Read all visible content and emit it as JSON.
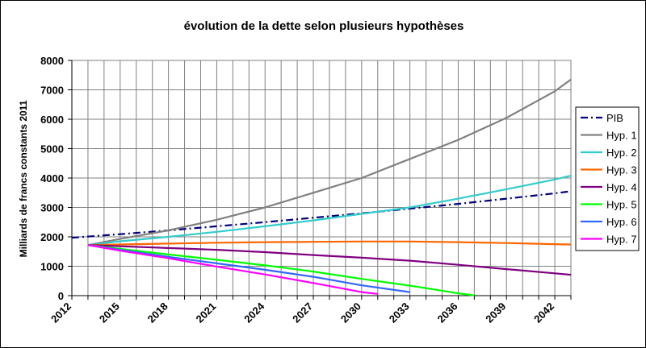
{
  "chart_data": {
    "type": "line",
    "title": "évolution de la dette selon plusieurs hypothèses",
    "ylabel": "Milliards de francs constants 2011",
    "xlabel": "",
    "xlim": [
      2012,
      2043
    ],
    "ylim": [
      0,
      8000
    ],
    "x_ticks": [
      2012,
      2015,
      2018,
      2021,
      2024,
      2027,
      2030,
      2033,
      2036,
      2039,
      2042
    ],
    "y_ticks": [
      0,
      1000,
      2000,
      3000,
      4000,
      5000,
      6000,
      7000,
      8000
    ],
    "grid": true,
    "legend_position": "right",
    "series": [
      {
        "name": "PIB",
        "color": "#000080",
        "dash": "dash-dot",
        "x": [
          2012,
          2015,
          2018,
          2021,
          2024,
          2027,
          2030,
          2033,
          2036,
          2039,
          2042,
          2043
        ],
        "y": [
          1970,
          2090,
          2220,
          2360,
          2500,
          2650,
          2800,
          2960,
          3120,
          3300,
          3480,
          3550
        ]
      },
      {
        "name": "Hyp. 1",
        "color": "#808080",
        "x": [
          2013,
          2015,
          2018,
          2021,
          2024,
          2027,
          2030,
          2033,
          2036,
          2039,
          2042,
          2043
        ],
        "y": [
          1720,
          1930,
          2220,
          2580,
          3000,
          3500,
          4000,
          4650,
          5300,
          6050,
          6950,
          7350
        ]
      },
      {
        "name": "Hyp. 2",
        "color": "#33CCCC",
        "x": [
          2013,
          2015,
          2018,
          2021,
          2024,
          2027,
          2030,
          2033,
          2036,
          2039,
          2042,
          2043
        ],
        "y": [
          1720,
          1850,
          2000,
          2170,
          2360,
          2560,
          2780,
          3000,
          3300,
          3620,
          3950,
          4080
        ]
      },
      {
        "name": "Hyp. 3",
        "color": "#FF6600",
        "x": [
          2013,
          2015,
          2018,
          2021,
          2024,
          2027,
          2030,
          2033,
          2036,
          2039,
          2042,
          2043
        ],
        "y": [
          1720,
          1740,
          1770,
          1800,
          1820,
          1830,
          1840,
          1840,
          1820,
          1790,
          1750,
          1740
        ]
      },
      {
        "name": "Hyp. 4",
        "color": "#800080",
        "x": [
          2013,
          2015,
          2018,
          2021,
          2024,
          2027,
          2030,
          2033,
          2036,
          2039,
          2042,
          2043
        ],
        "y": [
          1720,
          1680,
          1620,
          1560,
          1480,
          1380,
          1290,
          1190,
          1050,
          900,
          760,
          710
        ]
      },
      {
        "name": "Hyp. 5",
        "color": "#00FF00",
        "x": [
          2013,
          2015,
          2018,
          2021,
          2024,
          2027,
          2030,
          2033,
          2036,
          2037
        ],
        "y": [
          1720,
          1590,
          1400,
          1220,
          1030,
          820,
          570,
          340,
          80,
          10
        ]
      },
      {
        "name": "Hyp. 6",
        "color": "#3366FF",
        "x": [
          2013,
          2015,
          2018,
          2021,
          2024,
          2027,
          2030,
          2033
        ],
        "y": [
          1720,
          1560,
          1320,
          1100,
          880,
          640,
          350,
          120
        ]
      },
      {
        "name": "Hyp. 7",
        "color": "#FF00FF",
        "x": [
          2013,
          2015,
          2018,
          2021,
          2024,
          2027,
          2030,
          2031
        ],
        "y": [
          1720,
          1530,
          1270,
          990,
          720,
          430,
          120,
          60
        ]
      }
    ]
  }
}
